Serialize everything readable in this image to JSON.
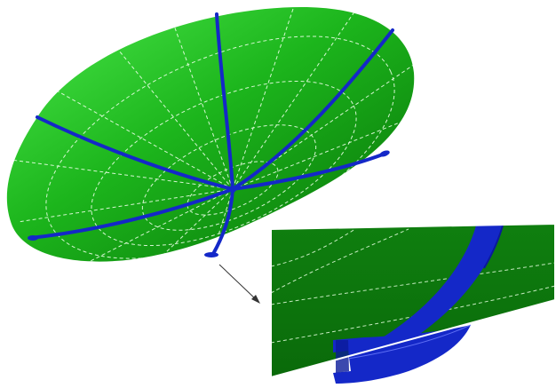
{
  "figure": {
    "colors": {
      "background": "#ffffff",
      "dish_light": "#3ee03e",
      "dish_mid": "#12a812",
      "dish_dark": "#066406",
      "rib": "#1428c8",
      "rib_dark": "#0a1a9a",
      "wireframe": "#e8ffe0",
      "inset_fill": "#0d7a0d",
      "inset_border": "#ffffff",
      "pointer": "#333333"
    },
    "icons": {
      "dish": "parabolic-dish-icon",
      "detail": "rib-joint-detail-icon",
      "pointer": "arrow-icon"
    }
  }
}
